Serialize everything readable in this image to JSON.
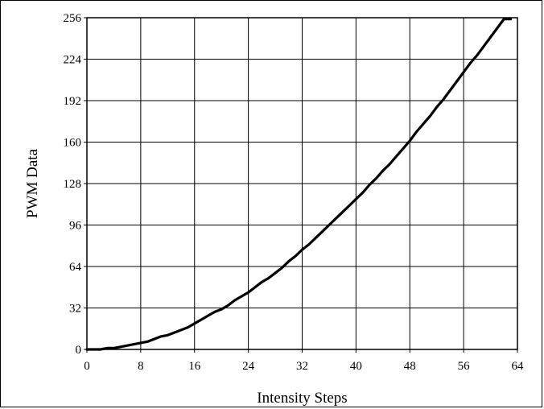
{
  "chart_data": {
    "type": "line",
    "title": "",
    "xlabel": "Intensity Steps",
    "ylabel": "PWM Data",
    "xlim": [
      0,
      64
    ],
    "ylim": [
      0,
      256
    ],
    "xticks": [
      0,
      8,
      16,
      24,
      32,
      40,
      48,
      56,
      64
    ],
    "yticks": [
      0,
      32,
      64,
      96,
      128,
      160,
      192,
      224,
      256
    ],
    "xtick_labels": [
      "0",
      "8",
      "16",
      "24",
      "32",
      "40",
      "48",
      "56",
      "64"
    ],
    "ytick_labels": [
      "0",
      "32",
      "64",
      "96",
      "128",
      "160",
      "192",
      "224",
      "256"
    ],
    "grid": true,
    "series": [
      {
        "color": "#000000",
        "x": [
          0,
          1,
          2,
          3,
          4,
          5,
          6,
          7,
          8,
          9,
          10,
          11,
          12,
          13,
          14,
          15,
          16,
          17,
          18,
          19,
          20,
          21,
          22,
          23,
          24,
          25,
          26,
          27,
          28,
          29,
          30,
          31,
          32,
          33,
          34,
          35,
          36,
          37,
          38,
          39,
          40,
          41,
          42,
          43,
          44,
          45,
          46,
          47,
          48,
          49,
          50,
          51,
          52,
          53,
          54,
          55,
          56,
          57,
          58,
          59,
          60,
          61,
          62,
          63
        ],
        "y": [
          0,
          0,
          0,
          1,
          1,
          2,
          3,
          4,
          5,
          6,
          8,
          10,
          11,
          13,
          15,
          17,
          20,
          23,
          26,
          29,
          31,
          34,
          38,
          41,
          44,
          48,
          52,
          55,
          59,
          63,
          68,
          72,
          77,
          81,
          86,
          91,
          96,
          101,
          106,
          111,
          116,
          121,
          127,
          132,
          138,
          143,
          149,
          155,
          161,
          168,
          174,
          180,
          187,
          193,
          200,
          207,
          214,
          221,
          227,
          234,
          241,
          248,
          255,
          255
        ]
      }
    ]
  }
}
